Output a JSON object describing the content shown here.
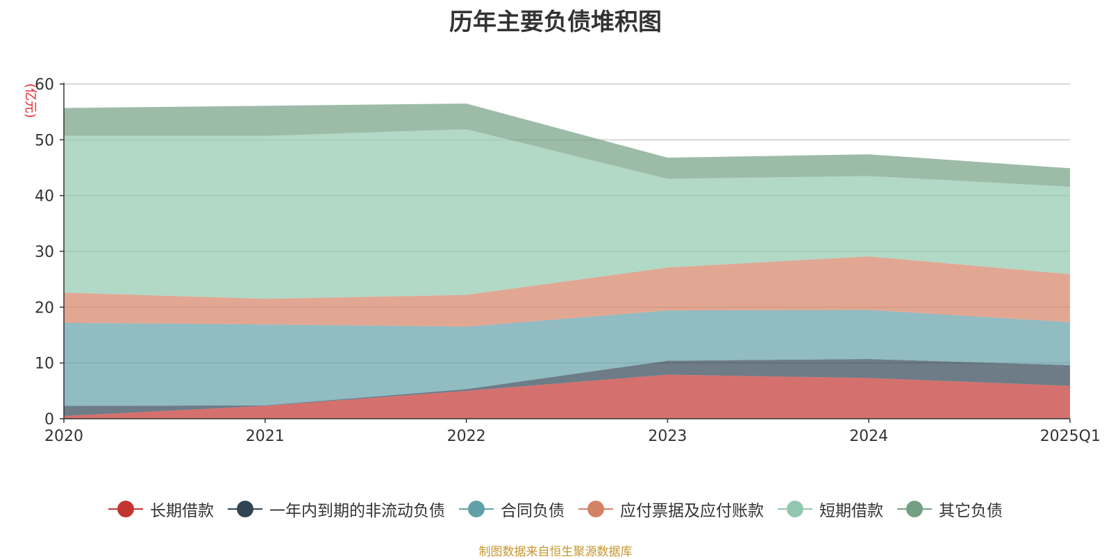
{
  "chart_data": {
    "type": "area",
    "stacked": true,
    "title": "历年主要负债堆积图",
    "unit_label": "(亿元)",
    "categories": [
      "2020",
      "2021",
      "2022",
      "2023",
      "2024",
      "2025Q1"
    ],
    "ylim": [
      0,
      60
    ],
    "y_ticks": [
      0,
      10,
      20,
      30,
      40,
      50,
      60
    ],
    "grid": true,
    "legend_position": "bottom",
    "series": [
      {
        "name": "长期借款",
        "color": "#c23531",
        "values": [
          0.5,
          2.3,
          5.0,
          7.9,
          7.3,
          5.9
        ]
      },
      {
        "name": "一年内到期的非流动负债",
        "color": "#2f4554",
        "values": [
          1.8,
          0.1,
          0.3,
          2.5,
          3.4,
          3.7
        ]
      },
      {
        "name": "合同负债",
        "color": "#61a0a8",
        "values": [
          14.9,
          14.5,
          11.2,
          9.0,
          8.8,
          7.7
        ]
      },
      {
        "name": "应付票据及应付账款",
        "color": "#d48265",
        "values": [
          5.4,
          4.6,
          5.7,
          7.7,
          9.6,
          8.6
        ]
      },
      {
        "name": "短期借款",
        "color": "#91c7ae",
        "values": [
          28.1,
          29.2,
          29.7,
          15.9,
          14.4,
          15.7
        ]
      },
      {
        "name": "其它负债",
        "color": "#749f83",
        "values": [
          5.0,
          5.4,
          4.6,
          3.8,
          3.9,
          3.3
        ]
      }
    ]
  },
  "source_note": "制图数据来自恒生聚源数据库"
}
